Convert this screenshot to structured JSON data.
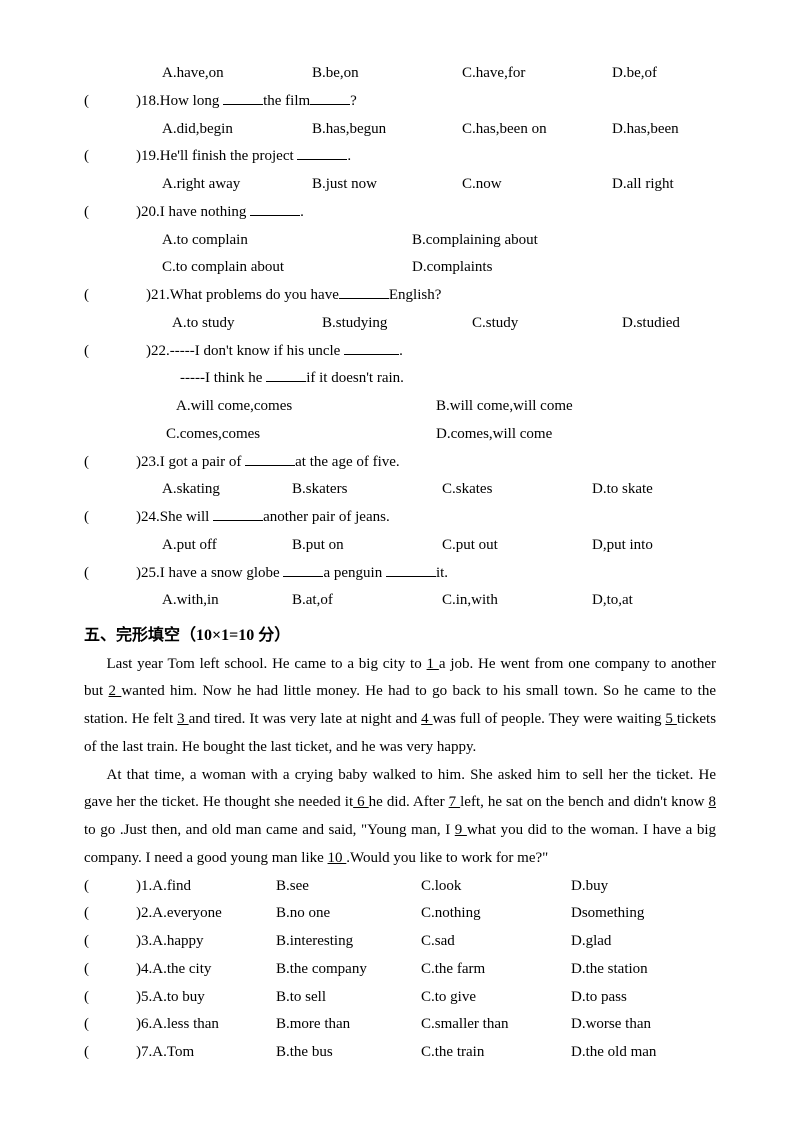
{
  "questions": [
    {
      "num": "",
      "options": [
        "A.have,on",
        "B.be,on",
        "C.have,for",
        "D.be,of"
      ]
    },
    {
      "num": "18",
      "stem_pre": "How long ",
      "stem_mid": "the film",
      "stem_post": "?",
      "blank1": 40,
      "blank2": 40,
      "options": [
        "A.did,begin",
        "B.has,begun",
        "C.has,been on",
        "D.has,been"
      ]
    },
    {
      "num": "19",
      "stem_pre": "He'll finish the project ",
      "stem_post": ".",
      "blank1": 50,
      "options": [
        "A.right away",
        "B.just now",
        "C.now",
        "D.all right"
      ]
    },
    {
      "num": "20",
      "stem_pre": "I have nothing ",
      "stem_post": ".",
      "blank1": 50,
      "two_col": true,
      "options": [
        "A.to complain",
        "B.complaining about",
        "C.to complain about",
        "D.complaints"
      ]
    },
    {
      "num": "21",
      "stem_pre": "What problems do you have",
      "stem_post": "English?",
      "blank1": 50,
      "wide": true,
      "options": [
        "A.to study",
        "B.studying",
        "C.study",
        "D.studied"
      ]
    },
    {
      "num": "22",
      "stem_pre": "-----I don't know if his uncle ",
      "stem_post": ".",
      "blank1": 55,
      "wide": true,
      "stem2_pre": "-----I think he ",
      "stem2_post": "if it doesn't rain.",
      "blank2": 40,
      "two_col": true,
      "options": [
        "A.will come,comes",
        "B.will come,will come",
        "C.comes,comes",
        "D.comes,will come"
      ]
    },
    {
      "num": "23",
      "stem_pre": "I got a pair of ",
      "stem_post": "at the age of five.",
      "blank1": 50,
      "options": [
        "A.skating",
        "B.skaters",
        "C.skates",
        "D.to skate"
      ]
    },
    {
      "num": "24",
      "stem_pre": "She will ",
      "stem_post": "another pair of jeans.",
      "blank1": 50,
      "options": [
        "A.put off",
        "B.put on",
        "C.put out",
        "D,put into"
      ]
    },
    {
      "num": "25",
      "stem_pre": "I have a snow globe ",
      "stem_mid": "a penguin ",
      "stem_post": "it.",
      "blank1": 40,
      "blank2": 50,
      "options": [
        "A.with,in",
        "B.at,of",
        "C.in,with",
        "D,to,at"
      ]
    }
  ],
  "section_title": "五、完形填空（10×1=10 分）",
  "passage": {
    "p1_a": "Last year Tom left school. He came to a big city to ",
    "b1": "  1  ",
    "p1_b": " a job. He went from one company to another but ",
    "b2": "  2  ",
    "p1_c": "wanted him. Now he had little money. He had to go back to his small town. So he came to the station. He felt ",
    "b3": "  3  ",
    "p1_d": " and tired. It was very late at night and ",
    "b4": "  4  ",
    "p1_e": "was full of people. They were waiting ",
    "b5": "  5  ",
    "p1_f": " tickets of the last train. He bought the last ticket, and he was very happy.",
    "p2_a": "At that time, a woman with a crying baby walked to him. She asked him to sell her the ticket. He gave her the ticket. He thought she needed it",
    "b6": "   6   ",
    "p2_b": "he did. After ",
    "b7": "7    ",
    "p2_c": "left, he sat on the bench and didn't know ",
    "b8": "  8  ",
    "p2_d": "to go .Just then, and old man came and said, \"Young man, I ",
    "b9": "  9  ",
    "p2_e": " what you did to the woman. I have a big company. I need a good young man like ",
    "b10": "  10  ",
    "p2_f": " .Would you like to work for me?\""
  },
  "cloze": [
    {
      "n": "1",
      "a": "A.find",
      "b": "B.see",
      "c": "C.look",
      "d": "D.buy"
    },
    {
      "n": "2",
      "a": "A.everyone",
      "b": "B.no one",
      "c": "C.nothing",
      "d": "Dsomething"
    },
    {
      "n": "3",
      "a": "A.happy",
      "b": "B.interesting",
      "c": "C.sad",
      "d": "D.glad"
    },
    {
      "n": "4",
      "a": "A.the city",
      "b": "B.the company",
      "c": "C.the farm",
      "d": "D.the station"
    },
    {
      "n": "5",
      "a": "A.to buy",
      "b": "B.to sell",
      "c": "C.to give",
      "d": "D.to pass"
    },
    {
      "n": "6",
      "a": "A.less than",
      "b": "B.more than",
      "c": "C.smaller than",
      "d": "D.worse than"
    },
    {
      "n": "7",
      "a": "A.Tom",
      "b": "B.the bus",
      "c": "C.the train",
      "d": "D.the old man"
    }
  ]
}
